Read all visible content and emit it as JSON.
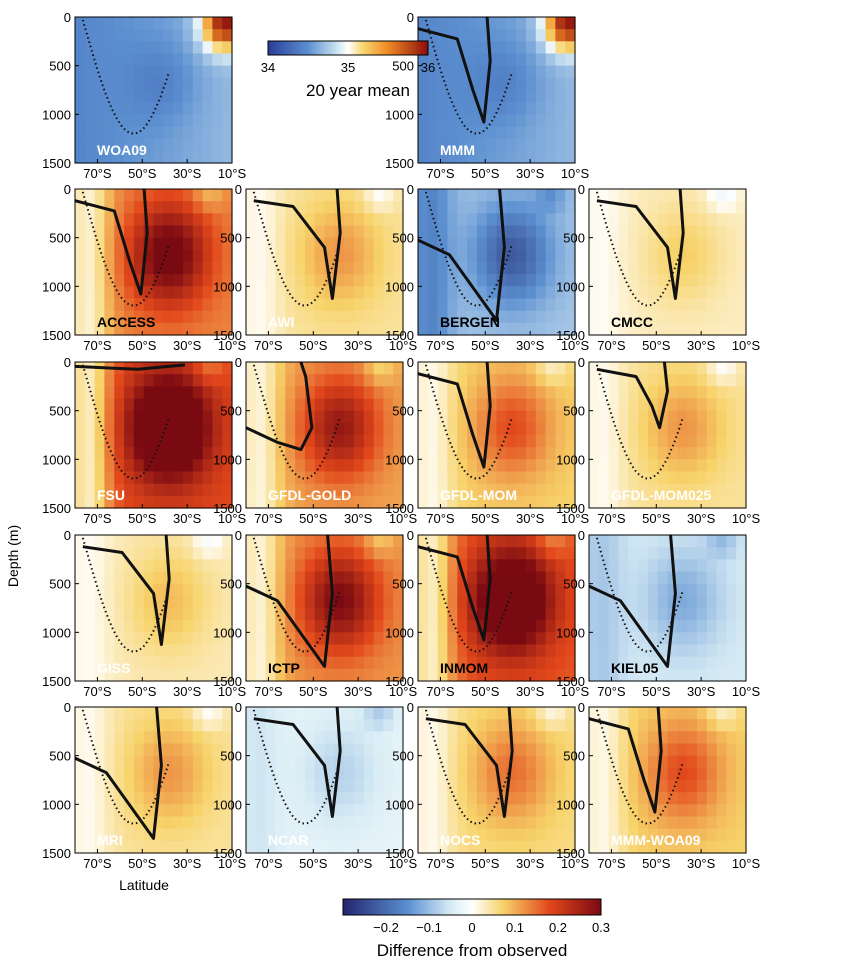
{
  "chart_data": {
    "type": "heatmap",
    "description_axes": {
      "ylabel": "Depth (m)",
      "xlabel": "Latitude",
      "y_ticks": [
        "0",
        "500",
        "1000",
        "1500"
      ],
      "x_ticks": [
        "70°S",
        "50°S",
        "30°S",
        "10°S"
      ],
      "x_range": [
        -80,
        -10
      ],
      "y_range": [
        0,
        1500
      ]
    },
    "colorbar_mean": {
      "title": "20 year mean",
      "ticks": [
        "34",
        "35",
        "36"
      ],
      "range": [
        34,
        36
      ]
    },
    "colorbar_diff": {
      "title": "Difference from observed",
      "ticks": [
        "−0.2",
        "−0.1",
        "0",
        "0.1",
        "0.2",
        "0.3"
      ],
      "range": [
        -0.3,
        0.3
      ]
    },
    "panels": [
      {
        "name": "WOA09",
        "kind": "mean",
        "label_color": "white",
        "bias": 0,
        "contour": "none"
      },
      {
        "name": "MMM",
        "kind": "mean",
        "label_color": "white",
        "bias": 0,
        "contour": "mid"
      },
      {
        "name": "ACCESS",
        "kind": "diff",
        "label_color": "black",
        "bias": 0.22,
        "contour": "mid"
      },
      {
        "name": "AWI",
        "kind": "diff",
        "label_color": "white",
        "bias": 0.08,
        "contour": "late"
      },
      {
        "name": "BERGEN",
        "kind": "diff",
        "label_color": "black",
        "bias": -0.15,
        "contour": "deep"
      },
      {
        "name": "CMCC",
        "kind": "diff",
        "label_color": "black",
        "bias": 0.05,
        "contour": "late"
      },
      {
        "name": "FSU",
        "kind": "diff",
        "label_color": "white",
        "bias": 0.3,
        "contour": "top"
      },
      {
        "name": "GFDL-GOLD",
        "kind": "diff",
        "label_color": "white",
        "bias": 0.18,
        "contour": "early"
      },
      {
        "name": "GFDL-MOM",
        "kind": "diff",
        "label_color": "white",
        "bias": 0.12,
        "contour": "mid"
      },
      {
        "name": "GFDL-MOM025",
        "kind": "diff",
        "label_color": "white",
        "bias": 0.08,
        "contour": "shallow"
      },
      {
        "name": "GISS",
        "kind": "diff",
        "label_color": "white",
        "bias": 0.06,
        "contour": "late"
      },
      {
        "name": "ICTP",
        "kind": "diff",
        "label_color": "black",
        "bias": 0.2,
        "contour": "deep"
      },
      {
        "name": "INMOM",
        "kind": "diff",
        "label_color": "black",
        "bias": 0.28,
        "contour": "mid"
      },
      {
        "name": "KIEL05",
        "kind": "diff",
        "label_color": "black",
        "bias": -0.08,
        "contour": "deep"
      },
      {
        "name": "MRI",
        "kind": "diff",
        "label_color": "white",
        "bias": 0.08,
        "contour": "deep"
      },
      {
        "name": "NCAR",
        "kind": "diff",
        "label_color": "white",
        "bias": -0.05,
        "contour": "late"
      },
      {
        "name": "NOCS",
        "kind": "diff",
        "label_color": "white",
        "bias": 0.1,
        "contour": "late"
      },
      {
        "name": "MMM-WOA09",
        "kind": "diff",
        "label_color": "white",
        "bias": 0.12,
        "contour": "mid"
      }
    ]
  }
}
